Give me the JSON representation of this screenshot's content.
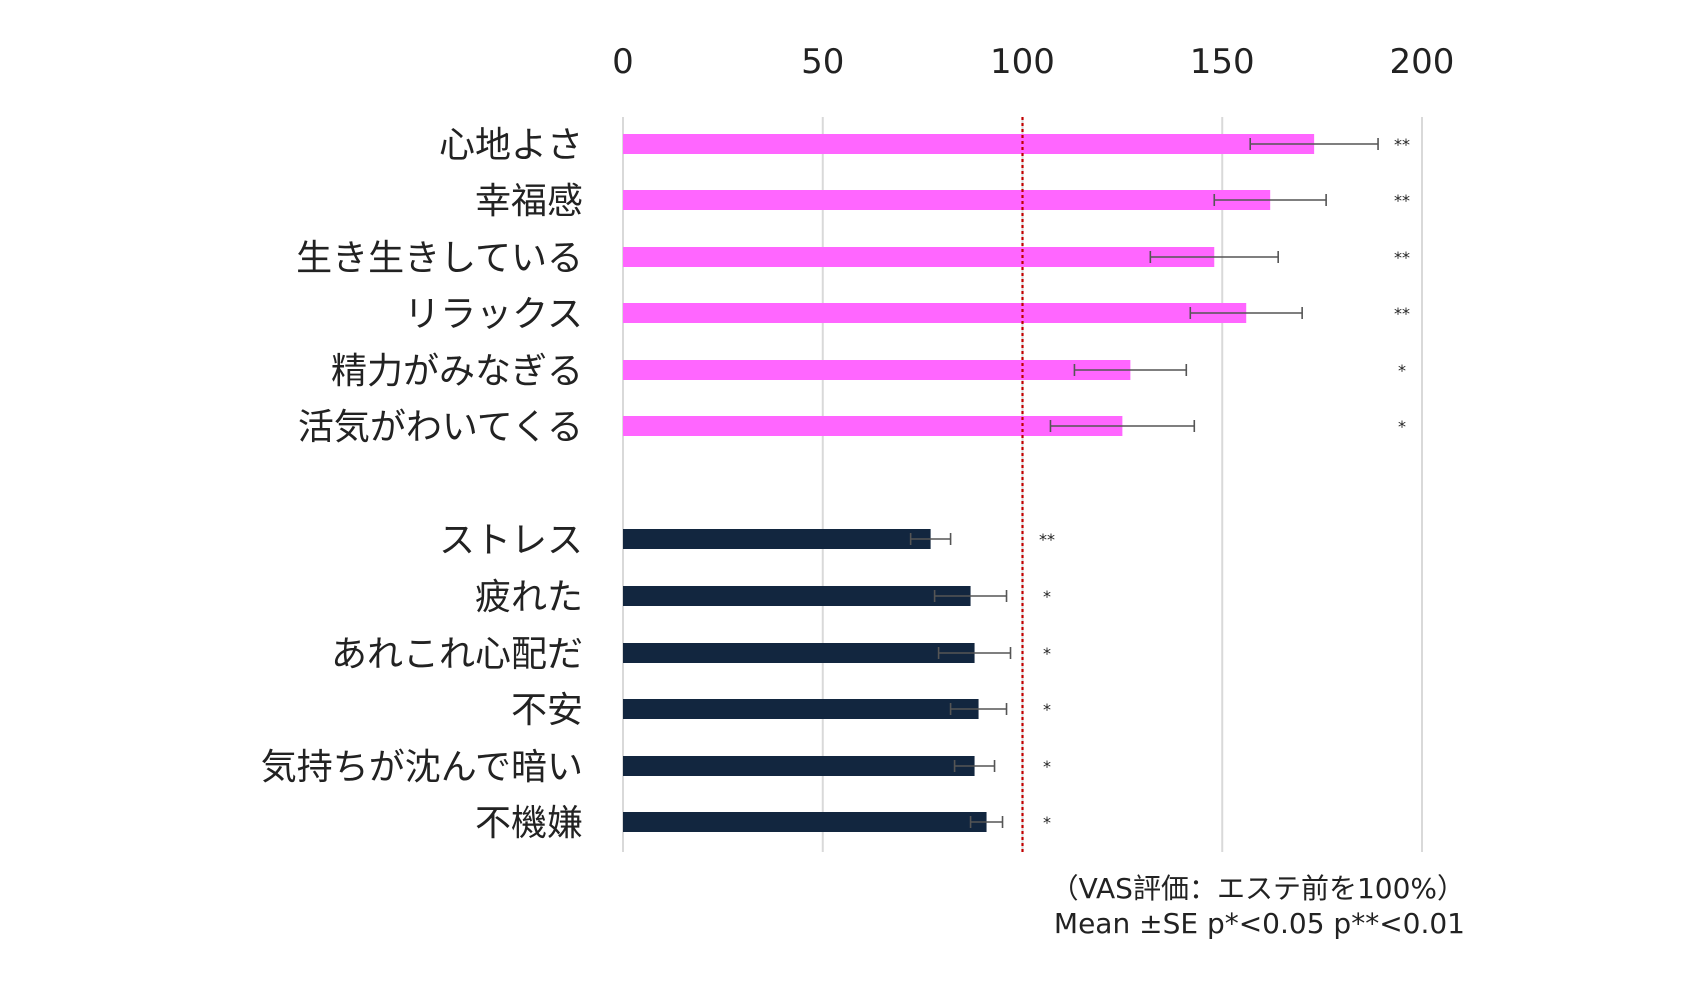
{
  "chart_data": {
    "type": "bar",
    "orientation": "horizontal",
    "x_ticks": [
      "0",
      "50",
      "100",
      "150",
      "200"
    ],
    "xlim": [
      0,
      200
    ],
    "reference_line": 100,
    "grid": true,
    "groups": [
      {
        "color": "#ff66ff",
        "categories": [
          "心地よさ",
          "幸福感",
          "生き生きしている",
          "リラックス",
          "精力がみなぎる",
          "活気がわいてくる"
        ],
        "values": [
          173,
          162,
          148,
          156,
          127,
          125
        ],
        "errors": [
          16,
          14,
          16,
          14,
          14,
          18
        ],
        "significance": [
          "**",
          "**",
          "**",
          "**",
          "*",
          "*"
        ]
      },
      {
        "color": "#12263f",
        "categories": [
          "ストレス",
          "疲れた",
          "あれこれ心配だ",
          "不安",
          "気持ちが沈んで暗い",
          "不機嫌"
        ],
        "values": [
          77,
          87,
          88,
          89,
          88,
          91
        ],
        "errors": [
          5,
          9,
          9,
          7,
          5,
          4
        ],
        "significance": [
          "**",
          "*",
          "*",
          "*",
          "*",
          "*"
        ]
      }
    ],
    "notes": [
      "（VAS評価：エステ前を100%）",
      "Mean ±SE p*<0.05  p**<0.01"
    ]
  }
}
